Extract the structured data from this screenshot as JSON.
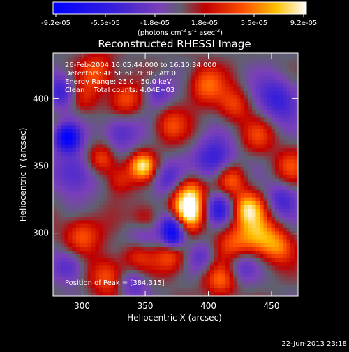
{
  "chart_data": {
    "type": "heatmap",
    "title": "Reconstructed RHESSI Image",
    "xlabel": "Heliocentric X (arcsec)",
    "ylabel": "Heliocentric Y (arcsec)",
    "xlim": [
      277,
      471
    ],
    "ylim": [
      253,
      434
    ],
    "xticks": [
      300,
      350,
      400,
      450
    ],
    "yticks": [
      300,
      350,
      400
    ],
    "colorbar": {
      "ticks": [
        "-9.2e-05",
        "-5.5e-05",
        "-1.8e-05",
        "1.8e-05",
        "5.5e-05",
        "9.2e-05"
      ],
      "unit_prefix": "(photons cm",
      "unit_exp1": "-2",
      "unit_mid": " s",
      "unit_exp2": "-1",
      "unit_mid2": " asec",
      "unit_exp3": "-2",
      "unit_suffix": ")",
      "range": [
        -9.2e-05,
        9.2e-05
      ]
    },
    "annotations": [
      "26-Feb-2004 16:05:44.000 to 16:10:34.000",
      "Detectors: 4F 5F 6F 7F 8F, Att 0",
      "Energy Range: 25.0 - 50.0 keV",
      "Clean    Total counts: 4.04E+03"
    ],
    "peak_label": "Position of Peak = [384,315]",
    "peak_position": [
      384,
      315
    ],
    "sources": [
      {
        "x": 384,
        "y": 315,
        "amp": 1.0,
        "r": 9
      },
      {
        "x": 385,
        "y": 330,
        "amp": 0.7,
        "r": 9
      },
      {
        "x": 348,
        "y": 350,
        "amp": 0.9,
        "r": 7
      },
      {
        "x": 418,
        "y": 340,
        "amp": 0.55,
        "r": 8
      },
      {
        "x": 432,
        "y": 318,
        "amp": 0.85,
        "r": 9
      },
      {
        "x": 440,
        "y": 298,
        "amp": 0.6,
        "r": 10
      },
      {
        "x": 455,
        "y": 290,
        "amp": 0.55,
        "r": 9
      },
      {
        "x": 420,
        "y": 292,
        "amp": 0.5,
        "r": 10
      },
      {
        "x": 410,
        "y": 265,
        "amp": 0.55,
        "r": 9
      },
      {
        "x": 398,
        "y": 410,
        "amp": 0.55,
        "r": 10
      },
      {
        "x": 420,
        "y": 395,
        "amp": 0.45,
        "r": 9
      },
      {
        "x": 370,
        "y": 380,
        "amp": 0.45,
        "r": 9
      },
      {
        "x": 335,
        "y": 400,
        "amp": 0.5,
        "r": 9
      },
      {
        "x": 312,
        "y": 420,
        "amp": 0.5,
        "r": 10
      },
      {
        "x": 300,
        "y": 400,
        "amp": 0.35,
        "r": 8
      },
      {
        "x": 315,
        "y": 355,
        "amp": 0.55,
        "r": 8
      },
      {
        "x": 330,
        "y": 340,
        "amp": 0.4,
        "r": 8
      },
      {
        "x": 300,
        "y": 298,
        "amp": 0.55,
        "r": 10
      },
      {
        "x": 320,
        "y": 268,
        "amp": 0.55,
        "r": 10
      },
      {
        "x": 345,
        "y": 285,
        "amp": 0.5,
        "r": 9
      },
      {
        "x": 370,
        "y": 282,
        "amp": 0.5,
        "r": 9
      },
      {
        "x": 350,
        "y": 310,
        "amp": 0.4,
        "r": 8
      },
      {
        "x": 440,
        "y": 372,
        "amp": 0.4,
        "r": 9
      },
      {
        "x": 465,
        "y": 350,
        "amp": 0.4,
        "r": 9
      },
      {
        "x": 288,
        "y": 371,
        "amp": -1.0,
        "r": 7
      },
      {
        "x": 295,
        "y": 345,
        "amp": -0.5,
        "r": 12
      },
      {
        "x": 285,
        "y": 405,
        "amp": -0.55,
        "r": 9
      },
      {
        "x": 372,
        "y": 307,
        "amp": -0.7,
        "r": 7
      },
      {
        "x": 372,
        "y": 297,
        "amp": -0.75,
        "r": 6
      },
      {
        "x": 348,
        "y": 295,
        "amp": -0.45,
        "r": 10
      },
      {
        "x": 405,
        "y": 355,
        "amp": -0.6,
        "r": 11
      },
      {
        "x": 408,
        "y": 318,
        "amp": -0.6,
        "r": 8
      },
      {
        "x": 368,
        "y": 340,
        "amp": -0.45,
        "r": 9
      },
      {
        "x": 330,
        "y": 375,
        "amp": -0.45,
        "r": 10
      },
      {
        "x": 455,
        "y": 400,
        "amp": -0.55,
        "r": 12
      },
      {
        "x": 458,
        "y": 325,
        "amp": -0.45,
        "r": 9
      },
      {
        "x": 425,
        "y": 275,
        "amp": -0.4,
        "r": 9
      },
      {
        "x": 360,
        "y": 405,
        "amp": -0.4,
        "r": 8
      },
      {
        "x": 290,
        "y": 275,
        "amp": -0.45,
        "r": 9
      },
      {
        "x": 340,
        "y": 262,
        "amp": -0.4,
        "r": 8
      },
      {
        "x": 395,
        "y": 282,
        "amp": -0.35,
        "r": 8
      }
    ]
  },
  "footer": {
    "date": "22-Jun-2013 23:18"
  }
}
